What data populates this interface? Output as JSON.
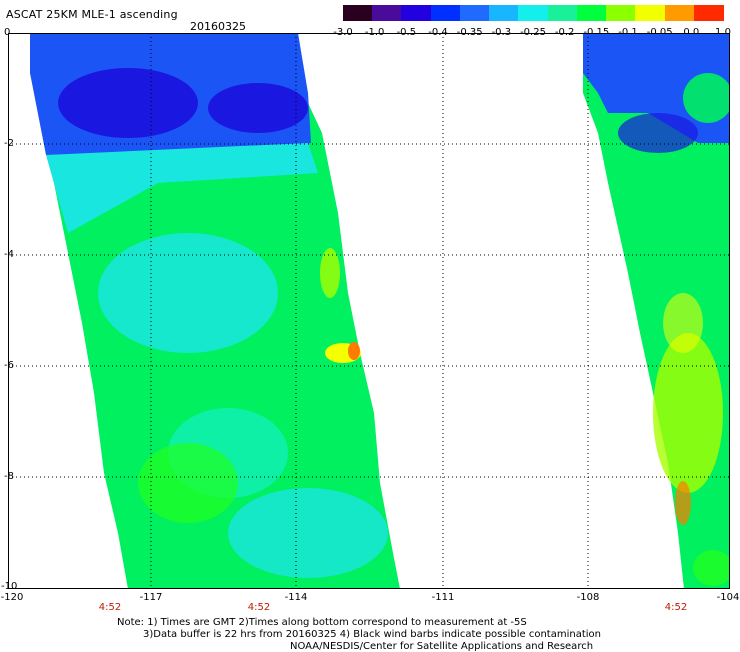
{
  "header": {
    "title": "ASCAT 25KM MLE-1 ascending",
    "date": "20160325"
  },
  "colorbar": {
    "labels": [
      "-3.0",
      "-1.0",
      "-0.5",
      "-0.4",
      "-0.35",
      "-0.3",
      "-0.25",
      "-0.2",
      "-0.15",
      "-0.1",
      "-0.05",
      "0.0",
      "1.0"
    ],
    "colors": [
      "#2a0020",
      "#4a0a9a",
      "#2300e0",
      "#0030ff",
      "#1f6bff",
      "#17b6ff",
      "#13f0ec",
      "#1af09a",
      "#00ff3c",
      "#8cff00",
      "#f2ff00",
      "#ff9b00",
      "#ff2a00"
    ]
  },
  "map": {
    "y_axis_labels": [
      "0",
      "-2",
      "-4",
      "-6",
      "-8",
      "-10"
    ],
    "x_axis_labels": [
      "-120",
      "-117",
      "-114",
      "-111",
      "-108",
      "-104"
    ],
    "time_labels": [
      "4:52",
      "4:52",
      "4:52"
    ],
    "swath_colors": {
      "blue_deep": "#1a18e0",
      "blue": "#1c55f5",
      "cyan": "#1ae6e0",
      "aqua": "#12f0b8",
      "green": "#00f060",
      "green_bright": "#20ff20",
      "lime": "#a6ff00",
      "yellow": "#f4ff00",
      "orange": "#ff7a00"
    }
  },
  "notes": {
    "line1": "Note: 1) Times are GMT 2)Times along bottom correspond to measurement at -5S",
    "line2": "3)Data buffer is 22 hrs from 20160325 4) Black wind barbs indicate possible contamination",
    "line3": "NOAA/NESDIS/Center for Satellite Applications and Research"
  }
}
